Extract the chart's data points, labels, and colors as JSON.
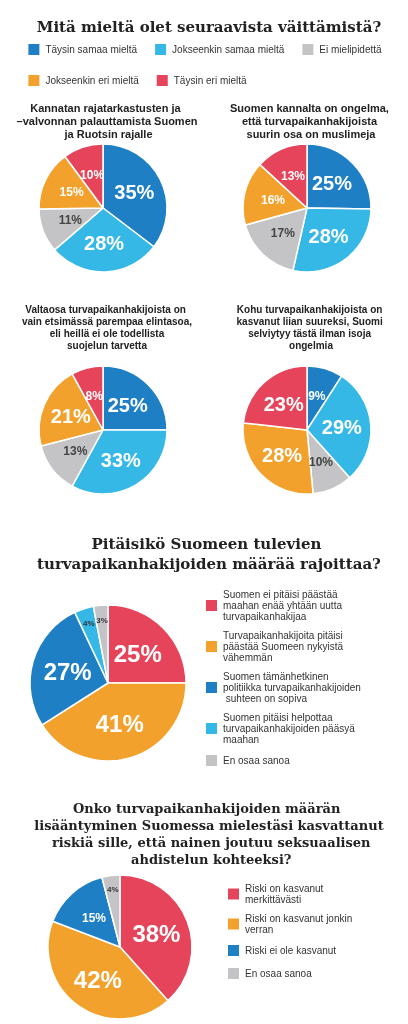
{
  "chart_data": [
    {
      "type": "pie",
      "title": "Mitä mieltä olet seuraavista väittämistä?",
      "subtitle": "Kannatan rajatarkastusten ja –valvonnan palauttamista Suomen ja Ruotsin rajalle",
      "categories": [
        "Täysin samaa mieltä",
        "Jokseenkin samaa mieltä",
        "Ei mielipidettä",
        "Jokseenkin eri mieltä",
        "Täysin eri mieltä"
      ],
      "values": [
        35,
        28,
        11,
        15,
        10
      ],
      "colors": [
        "#1f7fc4",
        "#35b8e6",
        "#c4c4c6",
        "#f2a12c",
        "#e5445a"
      ],
      "value_labels": [
        "35%",
        "28%",
        "11%",
        "15%",
        "10%"
      ],
      "legend": "top"
    },
    {
      "type": "pie",
      "title": "Suomen kannalta on ongelma, että turvapaikanhakijoista suurin osa on muslimeja",
      "categories": [
        null,
        null,
        null,
        null,
        null
      ],
      "values": [
        25,
        28,
        17,
        16,
        13
      ],
      "colors": [
        "#1f7fc4",
        "#35b8e6",
        "#c4c4c6",
        "#f2a12c",
        "#e5445a"
      ],
      "value_labels": [
        "25%",
        "28%",
        "17%",
        "16%",
        "13%"
      ]
    },
    {
      "type": "pie",
      "title": "Valtaosa turvapaikanhakijoista on vain etsimässä parempaa elintasoa, eli heillä ei ole todellista suojelun tarvetta",
      "categories": [
        null,
        null,
        null,
        null,
        null
      ],
      "values": [
        25,
        33,
        13,
        21,
        8
      ],
      "colors": [
        "#1f7fc4",
        "#35b8e6",
        "#c4c4c6",
        "#f2a12c",
        "#e5445a"
      ],
      "value_labels": [
        "25%",
        "33%",
        "13%",
        "21%",
        "8%"
      ]
    },
    {
      "type": "pie",
      "title": "Kohu turvapaikanhakijoista on kasvanut liian suureksi, Suomi selviytyy tästä ilman isoja ongelmia",
      "categories": [
        null,
        null,
        null,
        null,
        null
      ],
      "values": [
        9,
        29,
        10,
        28,
        23
      ],
      "colors": [
        "#1f7fc4",
        "#35b8e6",
        "#c4c4c6",
        "#f2a12c",
        "#e5445a"
      ],
      "value_labels": [
        "9%",
        "29%",
        "10%",
        "28%",
        "23%"
      ]
    },
    {
      "type": "pie",
      "title": "Pitäisikö Suomeen tulevien turvapaikanhakijoiden määrää rajoittaa?",
      "categories": [
        "Suomen ei pitäisi päästää maahan enää yhtään uutta turvapaikanhakijaa",
        "Turvapaikanhakijoita pitäisi päästää Suomeen nykyistä vähemmän",
        "Suomen tämänhetkinen politiikka turvapaikanhakijoiden suhteen on sopiva",
        "Suomen pitäisi helpottaa turvapaikanhakijoiden pääsyä maahan",
        "En osaa sanoa"
      ],
      "values": [
        25,
        41,
        27,
        4,
        3
      ],
      "colors": [
        "#e5445a",
        "#f2a12c",
        "#1f7fc4",
        "#35b8e6",
        "#c4c4c6"
      ],
      "value_labels": [
        "25%",
        "41%",
        "27%",
        "4%",
        "3%"
      ],
      "legend": "right"
    },
    {
      "type": "pie",
      "title": "Onko turvapaikanhakijoiden määrän lisääntyminen Suomessa mielestäsi kasvattanut riskiä sille, että nainen joutuu seksuaalisen ahdistelun kohteeksi?",
      "categories": [
        "Riski on kasvanut merkittävästi",
        "Riski on kasvanut jonkin verran",
        "Riski ei ole kasvanut",
        "En osaa sanoa"
      ],
      "values": [
        38,
        42,
        15,
        4
      ],
      "colors": [
        "#e5445a",
        "#f2a12c",
        "#1f7fc4",
        "#c4c4c6"
      ],
      "value_labels": [
        "38%",
        "42%",
        "15%",
        "4%"
      ],
      "legend": "right"
    }
  ]
}
